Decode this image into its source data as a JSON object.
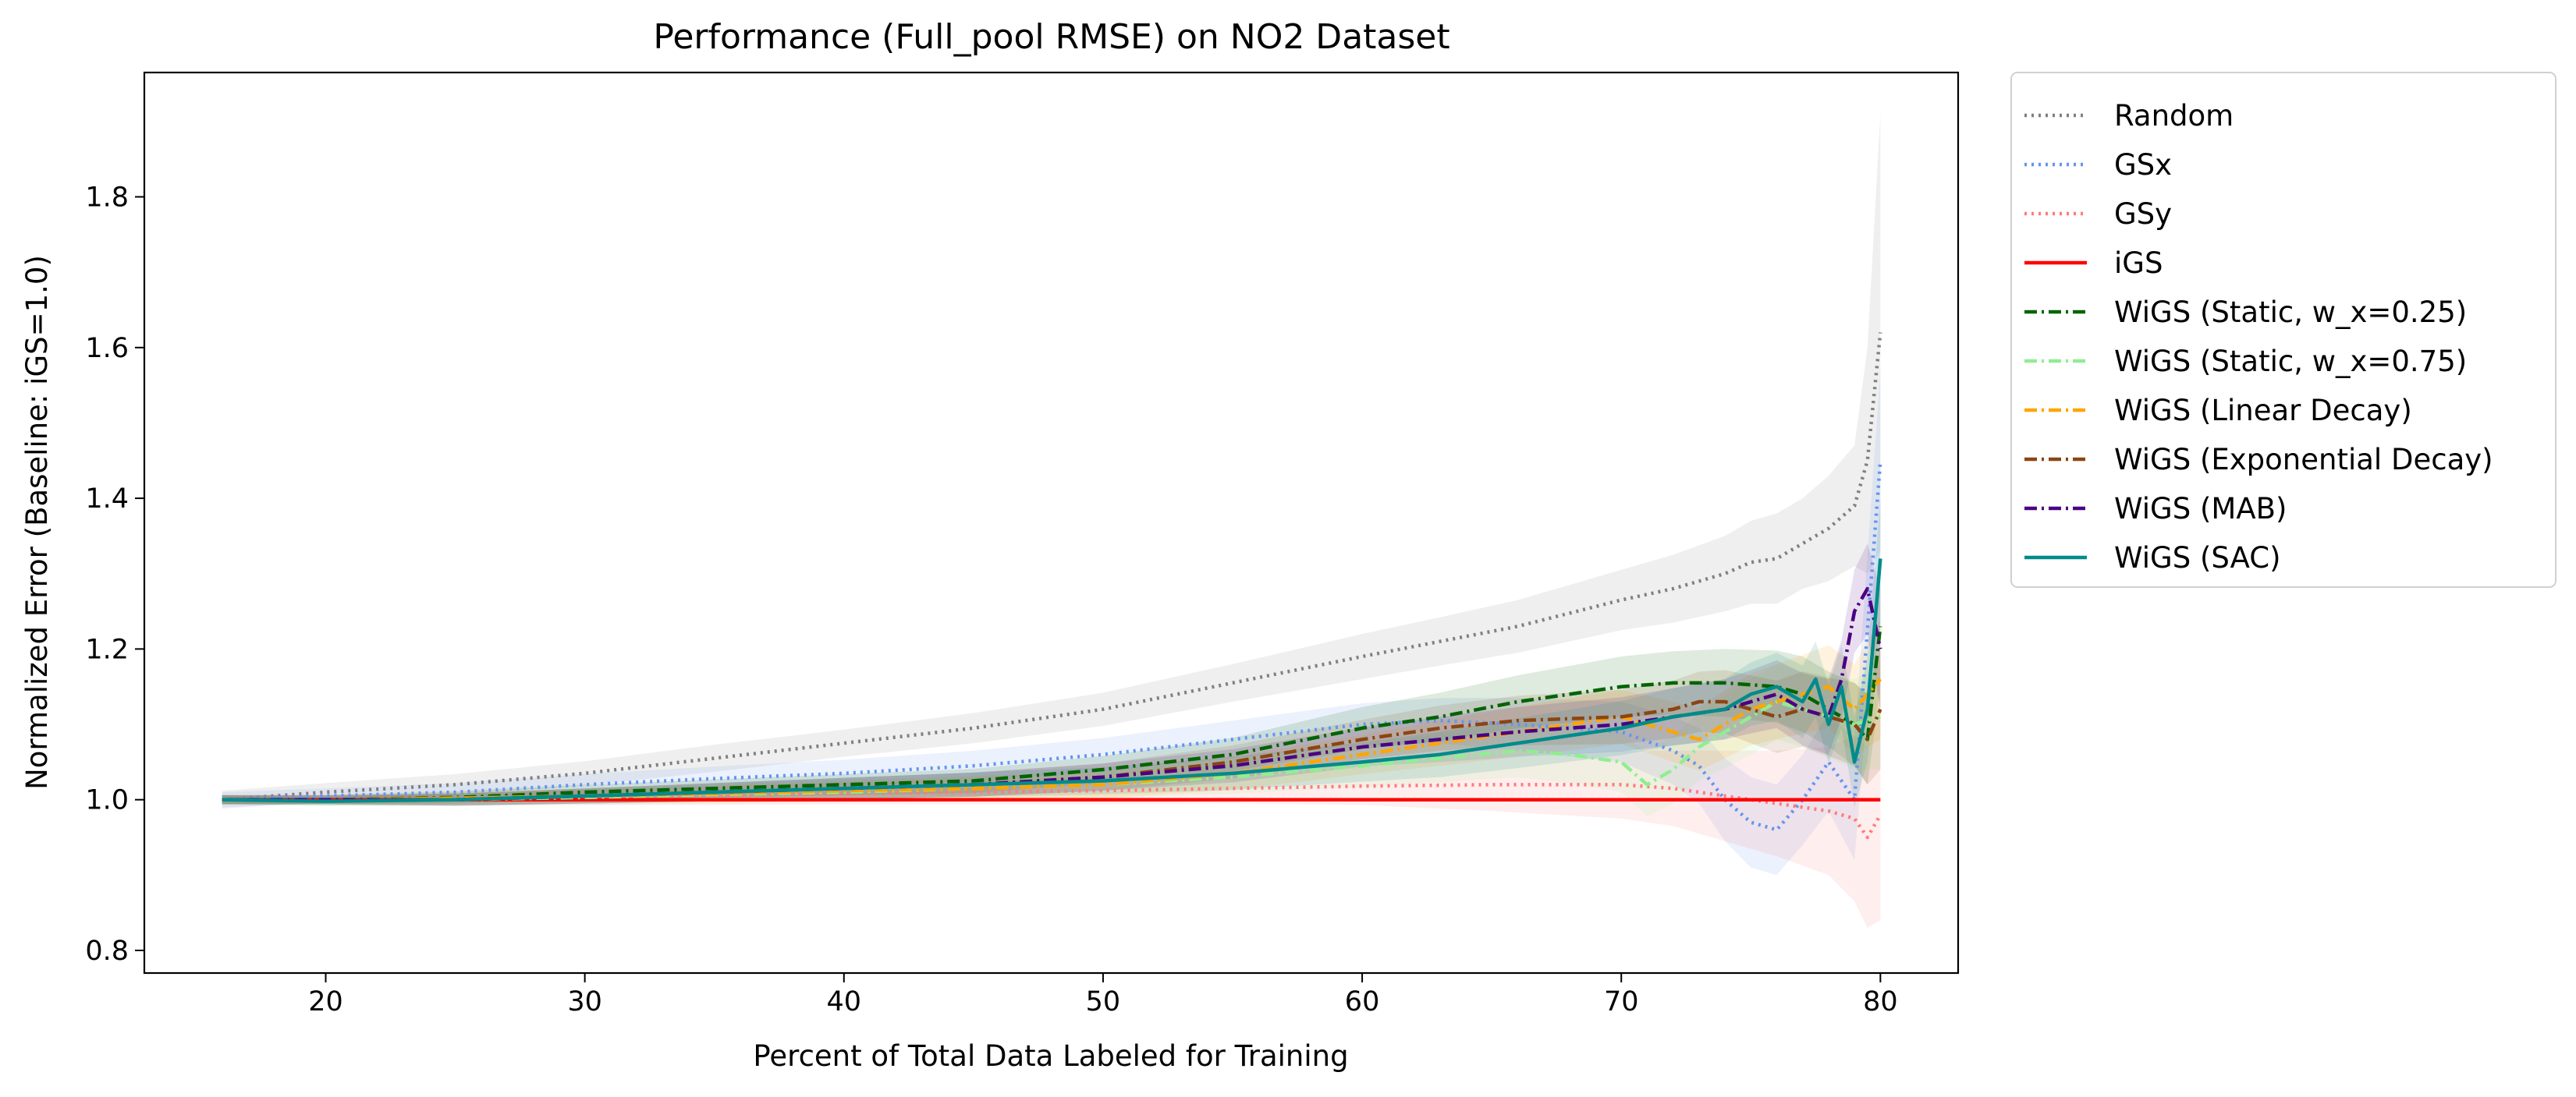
{
  "chart_data": {
    "type": "line",
    "title": "Performance (Full_pool RMSE) on NO2 Dataset",
    "xlabel": "Percent of Total Data Labeled for Training",
    "ylabel": "Normalized Error (Baseline: iGS=1.0)",
    "xlim": [
      13,
      83
    ],
    "ylim": [
      0.77,
      1.965
    ],
    "xticks": [
      20,
      30,
      40,
      50,
      60,
      70,
      80
    ],
    "yticks": [
      0.8,
      1.0,
      1.2,
      1.4,
      1.6,
      1.8
    ],
    "legend_position": "outside-right",
    "grid": false,
    "series": [
      {
        "name": "Random",
        "color": "#808080",
        "dash": "dotted",
        "x": [
          16,
          20,
          25,
          30,
          35,
          40,
          45,
          50,
          55,
          60,
          63,
          66,
          70,
          72,
          74,
          75,
          76,
          77,
          78,
          79,
          79.5,
          80
        ],
        "y": [
          1.0,
          1.01,
          1.02,
          1.035,
          1.055,
          1.075,
          1.095,
          1.12,
          1.155,
          1.19,
          1.21,
          1.23,
          1.265,
          1.28,
          1.3,
          1.315,
          1.32,
          1.34,
          1.36,
          1.39,
          1.45,
          1.62
        ],
        "band": [
          0.012,
          0.012,
          0.014,
          0.016,
          0.018,
          0.018,
          0.02,
          0.022,
          0.025,
          0.03,
          0.032,
          0.035,
          0.04,
          0.045,
          0.05,
          0.055,
          0.06,
          0.06,
          0.07,
          0.08,
          0.15,
          0.29
        ]
      },
      {
        "name": "GSx",
        "color": "#6495ed",
        "dash": "dotted",
        "x": [
          16,
          20,
          25,
          30,
          35,
          40,
          45,
          50,
          55,
          60,
          63,
          66,
          70,
          72,
          73,
          74,
          75,
          76,
          77,
          78,
          79,
          80
        ],
        "y": [
          1.0,
          1.005,
          1.01,
          1.02,
          1.028,
          1.035,
          1.045,
          1.06,
          1.08,
          1.1,
          1.105,
          1.1,
          1.09,
          1.065,
          1.045,
          1.0,
          0.97,
          0.96,
          1.0,
          1.05,
          1.0,
          1.45
        ],
        "band": [
          0.01,
          0.01,
          0.012,
          0.014,
          0.016,
          0.018,
          0.02,
          0.022,
          0.025,
          0.028,
          0.03,
          0.035,
          0.04,
          0.045,
          0.05,
          0.055,
          0.06,
          0.06,
          0.06,
          0.065,
          0.08,
          0.12
        ]
      },
      {
        "name": "GSy",
        "color": "#ff7b7b",
        "dash": "dotted",
        "x": [
          16,
          20,
          25,
          30,
          35,
          40,
          45,
          50,
          55,
          60,
          65,
          70,
          72,
          74,
          76,
          78,
          79,
          79.5,
          80
        ],
        "y": [
          1.0,
          1.0,
          1.0,
          1.003,
          1.005,
          1.008,
          1.01,
          1.012,
          1.015,
          1.018,
          1.02,
          1.02,
          1.015,
          1.005,
          0.995,
          0.985,
          0.975,
          0.95,
          0.98
        ],
        "band": [
          0.006,
          0.006,
          0.008,
          0.01,
          0.012,
          0.014,
          0.016,
          0.018,
          0.02,
          0.025,
          0.035,
          0.045,
          0.05,
          0.06,
          0.07,
          0.085,
          0.11,
          0.12,
          0.14
        ]
      },
      {
        "name": "iGS",
        "color": "#ff0000",
        "dash": "solid",
        "x": [
          16,
          80
        ],
        "y": [
          1.0,
          1.0
        ]
      },
      {
        "name": "WiGS (Static, w_x=0.25)",
        "color": "#006400",
        "dash": "dashdot",
        "x": [
          16,
          20,
          25,
          30,
          35,
          40,
          45,
          50,
          55,
          60,
          63,
          66,
          70,
          72,
          74,
          76,
          77,
          78,
          79,
          79.5,
          80
        ],
        "y": [
          1.0,
          1.0,
          1.003,
          1.01,
          1.015,
          1.02,
          1.025,
          1.04,
          1.06,
          1.095,
          1.11,
          1.13,
          1.15,
          1.155,
          1.155,
          1.15,
          1.14,
          1.12,
          1.1,
          1.08,
          1.23
        ],
        "band": [
          0.006,
          0.006,
          0.008,
          0.01,
          0.012,
          0.014,
          0.016,
          0.018,
          0.022,
          0.028,
          0.032,
          0.035,
          0.04,
          0.042,
          0.045,
          0.048,
          0.05,
          0.05,
          0.055,
          0.06,
          0.08
        ]
      },
      {
        "name": "WiGS (Static, w_x=0.75)",
        "color": "#90ee90",
        "dash": "dashdot",
        "x": [
          16,
          20,
          25,
          30,
          35,
          40,
          45,
          50,
          55,
          60,
          63,
          66,
          68,
          70,
          71,
          72,
          73,
          74,
          75,
          76,
          77,
          78,
          79,
          80
        ],
        "y": [
          1.0,
          0.998,
          1.0,
          1.003,
          1.007,
          1.01,
          1.015,
          1.02,
          1.03,
          1.045,
          1.055,
          1.065,
          1.06,
          1.05,
          1.02,
          1.04,
          1.07,
          1.09,
          1.11,
          1.13,
          1.12,
          1.11,
          1.1,
          1.11
        ],
        "band": [
          0.006,
          0.006,
          0.008,
          0.01,
          0.012,
          0.014,
          0.016,
          0.018,
          0.022,
          0.028,
          0.032,
          0.035,
          0.038,
          0.04,
          0.042,
          0.045,
          0.045,
          0.048,
          0.05,
          0.05,
          0.05,
          0.055,
          0.06,
          0.07
        ]
      },
      {
        "name": "WiGS (Linear Decay)",
        "color": "#ffa500",
        "dash": "dashdot",
        "x": [
          16,
          20,
          25,
          30,
          35,
          40,
          45,
          50,
          55,
          60,
          63,
          66,
          70,
          71,
          72,
          73,
          74,
          75,
          76,
          77,
          78,
          79,
          80
        ],
        "y": [
          1.0,
          1.0,
          1.002,
          1.005,
          1.008,
          1.012,
          1.015,
          1.02,
          1.035,
          1.06,
          1.075,
          1.09,
          1.11,
          1.1,
          1.09,
          1.08,
          1.1,
          1.12,
          1.13,
          1.14,
          1.15,
          1.12,
          1.16
        ],
        "band": [
          0.006,
          0.006,
          0.008,
          0.01,
          0.012,
          0.014,
          0.016,
          0.018,
          0.022,
          0.026,
          0.03,
          0.033,
          0.036,
          0.038,
          0.04,
          0.042,
          0.045,
          0.048,
          0.05,
          0.052,
          0.055,
          0.06,
          0.08
        ]
      },
      {
        "name": "WiGS (Exponential Decay)",
        "color": "#8b4513",
        "dash": "dashdot",
        "x": [
          16,
          20,
          25,
          30,
          35,
          40,
          45,
          50,
          55,
          60,
          63,
          66,
          70,
          72,
          73,
          74,
          75,
          76,
          77,
          78,
          79,
          79.5,
          80
        ],
        "y": [
          1.0,
          1.0,
          1.0,
          1.005,
          1.01,
          1.015,
          1.02,
          1.03,
          1.05,
          1.08,
          1.095,
          1.105,
          1.11,
          1.12,
          1.13,
          1.13,
          1.12,
          1.11,
          1.12,
          1.11,
          1.1,
          1.08,
          1.12
        ],
        "band": [
          0.006,
          0.006,
          0.008,
          0.01,
          0.012,
          0.014,
          0.016,
          0.018,
          0.022,
          0.026,
          0.03,
          0.033,
          0.036,
          0.038,
          0.04,
          0.042,
          0.045,
          0.048,
          0.05,
          0.052,
          0.055,
          0.06,
          0.08
        ]
      },
      {
        "name": "WiGS (MAB)",
        "color": "#4b0082",
        "dash": "dashdot",
        "x": [
          16,
          20,
          25,
          30,
          35,
          40,
          45,
          50,
          55,
          60,
          63,
          66,
          70,
          72,
          74,
          75,
          76,
          77,
          78,
          78.5,
          79,
          79.5,
          80
        ],
        "y": [
          1.0,
          1.0,
          1.0,
          1.005,
          1.01,
          1.015,
          1.02,
          1.03,
          1.045,
          1.07,
          1.08,
          1.09,
          1.1,
          1.11,
          1.12,
          1.13,
          1.14,
          1.12,
          1.11,
          1.16,
          1.25,
          1.28,
          1.2
        ],
        "band": [
          0.006,
          0.006,
          0.008,
          0.01,
          0.012,
          0.014,
          0.016,
          0.018,
          0.022,
          0.026,
          0.03,
          0.033,
          0.036,
          0.038,
          0.04,
          0.042,
          0.045,
          0.048,
          0.05,
          0.052,
          0.055,
          0.06,
          0.08
        ]
      },
      {
        "name": "WiGS (SAC)",
        "color": "#008b8b",
        "dash": "solid",
        "x": [
          16,
          20,
          25,
          30,
          35,
          40,
          45,
          50,
          55,
          60,
          63,
          66,
          70,
          72,
          74,
          75,
          76,
          77,
          77.5,
          78,
          78.5,
          79,
          79.5,
          80
        ],
        "y": [
          1.0,
          0.998,
          1.0,
          1.005,
          1.01,
          1.015,
          1.02,
          1.025,
          1.035,
          1.05,
          1.06,
          1.075,
          1.095,
          1.11,
          1.12,
          1.14,
          1.15,
          1.13,
          1.16,
          1.1,
          1.15,
          1.05,
          1.12,
          1.32
        ],
        "band": [
          0.006,
          0.006,
          0.008,
          0.01,
          0.012,
          0.014,
          0.016,
          0.018,
          0.022,
          0.026,
          0.03,
          0.033,
          0.036,
          0.038,
          0.04,
          0.042,
          0.045,
          0.048,
          0.05,
          0.052,
          0.055,
          0.06,
          0.07,
          0.08
        ]
      }
    ]
  }
}
